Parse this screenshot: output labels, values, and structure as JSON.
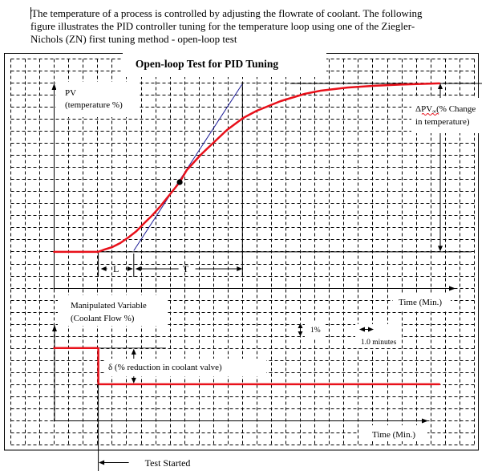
{
  "document": {
    "lines": [
      "The temperature of a process is controlled by adjusting the flowrate of coolant. The following",
      "figure illustrates the PID controller tuning for the temperature loop using one of the Ziegler-",
      "Nichols (ZN) first tuning method - open-loop test"
    ]
  },
  "figure": {
    "title": "Open-loop Test for PID Tuning",
    "pv_label": {
      "line1": "PV",
      "line2": "(temperature %)"
    },
    "delta_pv_label": {
      "symbol": "ΔPV",
      "subscript": "∞",
      "line1_rest": "(% Change",
      "line2": "in temperature)"
    },
    "dead_time_label": "L",
    "time_constant_label": "T",
    "top_time_axis_label": "Time (Min.)",
    "mv_label": {
      "line1": "Manipulated Variable",
      "line2": "(Coolant Flow %)"
    },
    "delta_label": "δ (% reduction in coolant valve)",
    "scale_pct_label": "1%",
    "scale_time_label": "1.0 minutes",
    "bottom_time_axis_label": "Time (Min.)",
    "test_started_label": "Test Started"
  },
  "colors": {
    "response": "#e8101a",
    "tangent": "#1c1c96",
    "ink": "#000000"
  },
  "chart_data": [
    {
      "type": "line",
      "title": "Open-loop Test for PID Tuning",
      "xlabel": "Time (Min.)",
      "ylabel": "PV (temperature %)",
      "grid": true,
      "x_scale": "1.0 minutes per grid division",
      "y_scale": "1% per grid division",
      "series": [
        {
          "name": "PV response (temperature %)",
          "color": "#e8101a",
          "points": [
            [
              0,
              3
            ],
            [
              3.02,
              3
            ],
            [
              3.46,
              3.19
            ],
            [
              4.01,
              3.39
            ],
            [
              4.57,
              3.73
            ],
            [
              5.12,
              4.19
            ],
            [
              5.68,
              4.72
            ],
            [
              6.23,
              5.39
            ],
            [
              6.79,
              6.05
            ],
            [
              7.34,
              6.79
            ],
            [
              8.0,
              7.78
            ],
            [
              8.67,
              8.78
            ],
            [
              9.16,
              9.78
            ],
            [
              10.11,
              11.04
            ],
            [
              11.05,
              12.11
            ],
            [
              11.93,
              13.11
            ],
            [
              13.04,
              14.1
            ],
            [
              13.98,
              14.7
            ],
            [
              15.64,
              15.5
            ],
            [
              17.3,
              16.1
            ],
            [
              18.41,
              16.37
            ],
            [
              20.24,
              16.63
            ],
            [
              22.12,
              16.77
            ],
            [
              23.95,
              16.87
            ],
            [
              26.6,
              16.97
            ]
          ]
        },
        {
          "name": "Tangent at inflection point",
          "color": "#1c1c96",
          "points": [
            [
              5.5,
              3.1
            ],
            [
              12.98,
              16.9
            ]
          ]
        }
      ],
      "inflection_point": [
        8.67,
        8.78
      ],
      "annotations": {
        "test_start_min": 3.05,
        "dead_time_L_min": 2.45,
        "time_constant_T_min": 7.5,
        "initial_pv": 3,
        "final_pv": 17,
        "delta_pv": 14,
        "delta_pv_marker_min": 26.66,
        "final_line_from_min": 16.3,
        "final_line_to_min": 29.54,
        "baseline_to_min": 28.82,
        "labels": [
          "L",
          "T",
          "ΔPV∞ (% Change in temperature)"
        ]
      }
    },
    {
      "type": "line",
      "title": "",
      "xlabel": "Time (Min.)",
      "ylabel": "Manipulated Variable (Coolant Flow %)",
      "grid": true,
      "series": [
        {
          "name": "Coolant flow %",
          "color": "#e8101a",
          "points": [
            [
              0,
              6
            ],
            [
              3.05,
              6
            ],
            [
              3.05,
              3
            ],
            [
              26.6,
              3
            ]
          ]
        }
      ],
      "annotations": {
        "step_time_min": 3.05,
        "initial_level": 6,
        "final_level": 3,
        "delta_pct": 3,
        "reference_line_end_min": 7.72,
        "delta_marker_min": 5.5,
        "labels": [
          "δ (% reduction in coolant valve)",
          "Test Started"
        ]
      }
    }
  ]
}
